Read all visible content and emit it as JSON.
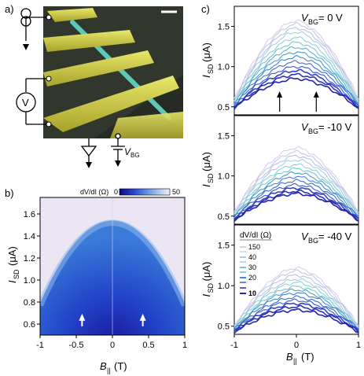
{
  "panel_labels": {
    "a": "a)",
    "b": "b)",
    "c": "c)"
  },
  "panel_a": {
    "meter_label": "V",
    "gate_label": "V",
    "gate_sub": "BG"
  },
  "chart_data": [
    {
      "type": "heatmap",
      "panel": "b",
      "xlabel_main": "B",
      "xlabel_sub": "||",
      "xlabel_unit": "(T)",
      "ylabel_main": "I",
      "ylabel_sub": "SD",
      "ylabel_unit": "(μA)",
      "xlim": [
        -1,
        1
      ],
      "ylim": [
        0.5,
        1.75
      ],
      "xticks": [
        "-1",
        "-0.5",
        "0",
        "0.5",
        "1"
      ],
      "yticks": [
        "0.6",
        "0.8",
        "1.0",
        "1.2",
        "1.4",
        "1.6"
      ],
      "colorbar": {
        "label": "dV/dI (Ω)",
        "min": "0",
        "max": "50"
      },
      "ridge_peak_current": 1.6,
      "ridge_current_at_edges": 0.85,
      "arrows_at_b": [
        -0.42,
        0.42
      ],
      "arrows_at_current": 0.63
    },
    {
      "type": "line",
      "panel": "c",
      "xlabel_main": "B",
      "xlabel_sub": "||",
      "xlabel_unit": "(T)",
      "ylabel_main": "I",
      "ylabel_sub": "SD",
      "ylabel_unit": "(μA)",
      "xlim": [
        -1,
        1
      ],
      "xticks": [
        "-1",
        "0",
        "1"
      ],
      "legend": {
        "title": "dV/dI (Ω)",
        "levels": [
          "150",
          "40",
          "30",
          "20",
          "10"
        ]
      },
      "subplots": [
        {
          "vbg_label": "V",
          "vbg_sub": "BG",
          "vbg_value": " = 0 V",
          "ylim": [
            0.4,
            1.75
          ],
          "yticks": [
            "0.5",
            "1.0",
            "1.5"
          ],
          "curve_peaks": [
            1.57,
            1.53,
            1.48,
            1.43,
            1.36,
            1.3,
            1.24,
            1.18,
            1.12,
            1.06,
            1.0,
            0.95,
            0.9,
            0.85
          ],
          "curve_edges": [
            0.6,
            0.58,
            0.57,
            0.56,
            0.55,
            0.54,
            0.53,
            0.52,
            0.52,
            0.51,
            0.5,
            0.49,
            0.49,
            0.48
          ],
          "arrows_at_b": [
            -0.27,
            0.32
          ]
        },
        {
          "vbg_label": "V",
          "vbg_sub": "BG",
          "vbg_value": " = -10 V",
          "ylim": [
            0.4,
            1.75
          ],
          "yticks": [
            "0.5",
            "1.0",
            "1.5"
          ],
          "curve_peaks": [
            1.35,
            1.3,
            1.25,
            1.2,
            1.14,
            1.09,
            1.04,
            0.99,
            0.94,
            0.89,
            0.85,
            0.81,
            0.78
          ],
          "curve_edges": [
            0.55,
            0.54,
            0.53,
            0.52,
            0.51,
            0.5,
            0.49,
            0.48,
            0.47,
            0.46,
            0.46,
            0.45,
            0.45
          ]
        },
        {
          "vbg_label": "V",
          "vbg_sub": "BG",
          "vbg_value": " = -40 V",
          "ylim": [
            0.4,
            1.75
          ],
          "yticks": [
            "0.5",
            "1.0",
            "1.5"
          ],
          "curve_peaks": [
            1.22,
            1.18,
            1.13,
            1.08,
            1.04,
            0.99,
            0.95,
            0.91,
            0.86,
            0.82,
            0.78,
            0.74,
            0.7
          ],
          "curve_edges": [
            0.5,
            0.49,
            0.49,
            0.48,
            0.47,
            0.47,
            0.46,
            0.46,
            0.45,
            0.45,
            0.44,
            0.44,
            0.43
          ]
        }
      ]
    }
  ]
}
